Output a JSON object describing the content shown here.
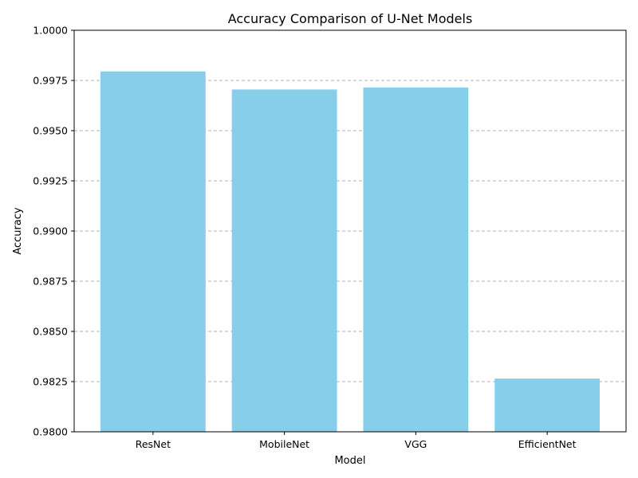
{
  "chart_data": {
    "type": "bar",
    "title": "Accuracy Comparison of U-Net Models",
    "xlabel": "Model",
    "ylabel": "Accuracy",
    "categories": [
      "ResNet",
      "MobileNet",
      "VGG",
      "EfficientNet"
    ],
    "values": [
      0.99795,
      0.99705,
      0.99715,
      0.98265
    ],
    "ylim": [
      0.98,
      1.0
    ],
    "yticks": [
      "0.9800",
      "0.9825",
      "0.9850",
      "0.9875",
      "0.9900",
      "0.9925",
      "0.9950",
      "0.9975",
      "1.0000"
    ],
    "ytick_values": [
      0.98,
      0.9825,
      0.985,
      0.9875,
      0.99,
      0.9925,
      0.995,
      0.9975,
      1.0
    ],
    "bar_color": "#87ceeb",
    "grid": "y-dashed",
    "legend": "none"
  }
}
